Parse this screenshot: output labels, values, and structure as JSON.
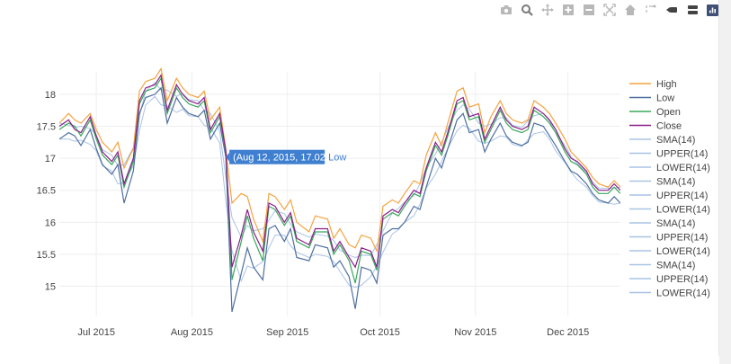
{
  "modebar": {
    "icons": [
      "camera-icon",
      "zoom-icon",
      "pan-icon",
      "zoom-in-icon",
      "zoom-out-icon",
      "autoscale-icon",
      "reset-axes-icon",
      "spike-lines-icon",
      "hover-closest-icon",
      "hover-compare-icon",
      "plotly-logo-icon"
    ]
  },
  "colors": {
    "High": "#f5a340",
    "Low": "#4f6fa0",
    "Open": "#3aa85c",
    "Close": "#8a1f8a",
    "indicator": "#a9c3e6",
    "grid": "#eeeeee",
    "hover_bg": "#3f7fd0"
  },
  "chart_data": {
    "type": "line",
    "title": "",
    "xlabel": "",
    "ylabel": "",
    "xlim": [
      "2015-06-19",
      "2015-12-18"
    ],
    "ylim": [
      14.53,
      18.35
    ],
    "x_ticks": [
      {
        "date": "2015-07-01",
        "label": "Jul 2015"
      },
      {
        "date": "2015-08-01",
        "label": "Aug 2015"
      },
      {
        "date": "2015-09-01",
        "label": "Sep 2015"
      },
      {
        "date": "2015-10-01",
        "label": "Oct 2015"
      },
      {
        "date": "2015-11-01",
        "label": "Nov 2015"
      },
      {
        "date": "2015-12-01",
        "label": "Dec 2015"
      }
    ],
    "y_ticks": [
      {
        "value": 15,
        "label": "15"
      },
      {
        "value": 15.5,
        "label": "15.5"
      },
      {
        "value": 16,
        "label": "16"
      },
      {
        "value": 16.5,
        "label": "16.5"
      },
      {
        "value": 17,
        "label": "17"
      },
      {
        "value": 17.5,
        "label": "17.5"
      },
      {
        "value": 18,
        "label": "18"
      }
    ],
    "grid": true,
    "legend_position": "right",
    "x": [
      "2015-06-19",
      "2015-06-22",
      "2015-06-24",
      "2015-06-26",
      "2015-06-29",
      "2015-07-01",
      "2015-07-03",
      "2015-07-06",
      "2015-07-08",
      "2015-07-10",
      "2015-07-13",
      "2015-07-15",
      "2015-07-17",
      "2015-07-20",
      "2015-07-22",
      "2015-07-24",
      "2015-07-27",
      "2015-07-29",
      "2015-07-31",
      "2015-08-03",
      "2015-08-05",
      "2015-08-07",
      "2015-08-10",
      "2015-08-12",
      "2015-08-14",
      "2015-08-17",
      "2015-08-19",
      "2015-08-21",
      "2015-08-24",
      "2015-08-26",
      "2015-08-28",
      "2015-08-31",
      "2015-09-02",
      "2015-09-04",
      "2015-09-08",
      "2015-09-10",
      "2015-09-14",
      "2015-09-16",
      "2015-09-18",
      "2015-09-21",
      "2015-09-23",
      "2015-09-25",
      "2015-09-28",
      "2015-09-30",
      "2015-10-02",
      "2015-10-05",
      "2015-10-07",
      "2015-10-09",
      "2015-10-12",
      "2015-10-14",
      "2015-10-16",
      "2015-10-19",
      "2015-10-21",
      "2015-10-23",
      "2015-10-26",
      "2015-10-28",
      "2015-10-30",
      "2015-11-02",
      "2015-11-04",
      "2015-11-06",
      "2015-11-09",
      "2015-11-11",
      "2015-11-13",
      "2015-11-16",
      "2015-11-18",
      "2015-11-20",
      "2015-11-23",
      "2015-11-25",
      "2015-11-27",
      "2015-11-30",
      "2015-12-02",
      "2015-12-04",
      "2015-12-07",
      "2015-12-09",
      "2015-12-11",
      "2015-12-14",
      "2015-12-16",
      "2015-12-18"
    ],
    "series": [
      {
        "name": "High",
        "values": [
          17.55,
          17.7,
          17.6,
          17.55,
          17.7,
          17.45,
          17.25,
          17.1,
          17.25,
          16.85,
          17.15,
          18.05,
          18.2,
          18.25,
          18.4,
          17.9,
          18.25,
          18.1,
          18.0,
          17.95,
          18.05,
          17.6,
          17.8,
          17.15,
          16.3,
          16.45,
          16.4,
          16.05,
          15.7,
          16.45,
          16.4,
          16.2,
          16.35,
          16.0,
          15.85,
          16.1,
          16.05,
          15.75,
          15.9,
          15.65,
          15.6,
          15.8,
          15.75,
          15.55,
          16.25,
          16.35,
          16.3,
          16.45,
          16.65,
          16.6,
          17.05,
          17.4,
          17.2,
          17.55,
          18.05,
          18.1,
          17.8,
          17.85,
          17.4,
          17.65,
          17.9,
          17.7,
          17.6,
          17.55,
          17.6,
          17.9,
          17.8,
          17.7,
          17.55,
          17.3,
          17.1,
          17.0,
          16.85,
          16.7,
          16.6,
          16.55,
          16.65,
          16.55
        ]
      },
      {
        "name": "Low",
        "values": [
          17.3,
          17.4,
          17.35,
          17.2,
          17.45,
          17.15,
          16.9,
          16.75,
          16.9,
          16.3,
          16.8,
          17.7,
          17.95,
          18.0,
          18.1,
          17.55,
          17.95,
          17.8,
          17.7,
          17.65,
          17.75,
          17.3,
          17.55,
          17.02,
          14.6,
          15.2,
          15.6,
          15.3,
          15.1,
          15.9,
          15.95,
          15.7,
          15.9,
          15.45,
          15.4,
          15.65,
          15.6,
          15.3,
          15.4,
          15.15,
          14.65,
          15.3,
          15.25,
          15.05,
          15.8,
          15.9,
          15.9,
          16.0,
          16.25,
          16.2,
          16.55,
          17.0,
          16.85,
          17.15,
          17.6,
          17.7,
          17.4,
          17.45,
          17.1,
          17.3,
          17.55,
          17.35,
          17.25,
          17.2,
          17.25,
          17.55,
          17.5,
          17.35,
          17.2,
          16.95,
          16.8,
          16.75,
          16.6,
          16.45,
          16.35,
          16.3,
          16.4,
          16.3
        ]
      },
      {
        "name": "Open",
        "values": [
          17.45,
          17.55,
          17.5,
          17.35,
          17.6,
          17.3,
          17.05,
          16.9,
          17.05,
          16.55,
          16.95,
          17.85,
          18.05,
          18.1,
          18.25,
          17.7,
          18.1,
          17.95,
          17.85,
          17.8,
          17.9,
          17.4,
          17.65,
          17.1,
          15.1,
          15.7,
          16.1,
          15.75,
          15.4,
          16.25,
          16.2,
          15.95,
          16.1,
          15.7,
          15.6,
          15.85,
          15.85,
          15.5,
          15.65,
          15.4,
          15.05,
          15.55,
          15.5,
          15.25,
          16.05,
          16.15,
          16.1,
          16.25,
          16.45,
          16.4,
          16.8,
          17.2,
          17.05,
          17.35,
          17.85,
          17.9,
          17.6,
          17.65,
          17.25,
          17.45,
          17.75,
          17.55,
          17.45,
          17.4,
          17.45,
          17.75,
          17.65,
          17.55,
          17.4,
          17.1,
          16.95,
          16.9,
          16.75,
          16.55,
          16.45,
          16.45,
          16.55,
          16.45
        ]
      },
      {
        "name": "Close",
        "values": [
          17.5,
          17.6,
          17.45,
          17.4,
          17.65,
          17.35,
          17.1,
          16.95,
          17.1,
          16.6,
          17.0,
          17.9,
          18.1,
          18.15,
          18.3,
          17.75,
          18.15,
          18.0,
          17.9,
          17.85,
          17.95,
          17.45,
          17.7,
          17.12,
          15.3,
          15.8,
          16.2,
          15.85,
          15.55,
          16.3,
          16.25,
          16.0,
          16.15,
          15.75,
          15.65,
          15.9,
          15.9,
          15.55,
          15.7,
          15.45,
          15.3,
          15.6,
          15.55,
          15.3,
          16.1,
          16.2,
          16.15,
          16.3,
          16.5,
          16.45,
          16.85,
          17.25,
          17.1,
          17.4,
          17.9,
          17.95,
          17.65,
          17.7,
          17.3,
          17.5,
          17.8,
          17.6,
          17.5,
          17.45,
          17.5,
          17.8,
          17.7,
          17.6,
          17.45,
          17.15,
          17.0,
          16.95,
          16.8,
          16.6,
          16.5,
          16.5,
          16.6,
          16.5
        ]
      }
    ],
    "indicator_series": [
      "SMA(14)",
      "UPPER(14)",
      "LOWER(14)",
      "SMA(14)",
      "UPPER(14)",
      "LOWER(14)",
      "SMA(14)",
      "UPPER(14)",
      "LOWER(14)",
      "SMA(14)",
      "UPPER(14)",
      "LOWER(14)"
    ],
    "hover": {
      "date": "2015-08-12",
      "value": 17.02,
      "text": "(Aug 12, 2015, 17.02)",
      "series": "Low"
    }
  }
}
